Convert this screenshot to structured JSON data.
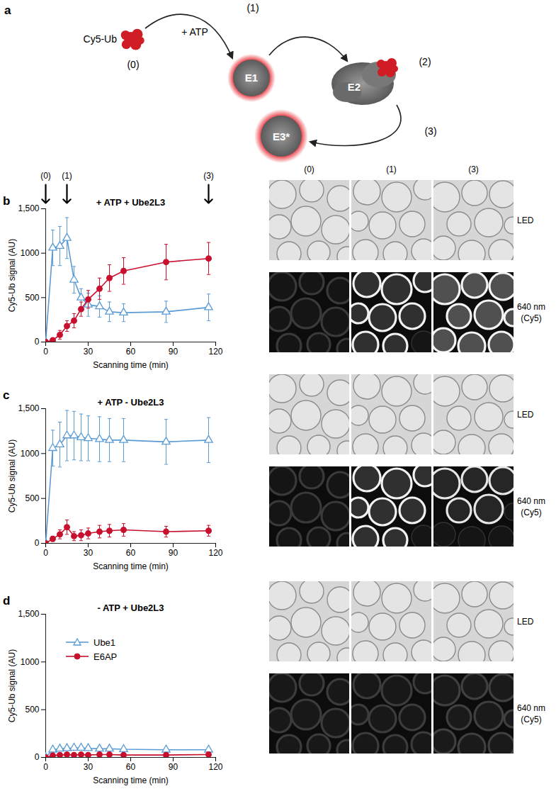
{
  "chart_data": [
    {
      "type": "line",
      "panel": "b",
      "title": "+ ATP + Ube2L3",
      "x_label": "Scanning time (min)",
      "y_label": "Cy5-Ub signal (AU)",
      "x": [
        0,
        5,
        10,
        15,
        20,
        25,
        30,
        38,
        45,
        55,
        85,
        115
      ],
      "xlim": [
        0,
        120
      ],
      "xticks": [
        0,
        30,
        60,
        90,
        120
      ],
      "ylim": [
        0,
        1500
      ],
      "yticks": [
        0,
        500,
        1000,
        {
          "value": 1500,
          "label": "1,500"
        }
      ],
      "markers": [
        {
          "x": 0,
          "label": "(0)"
        },
        {
          "x": 15,
          "label": "(1)"
        },
        {
          "x": 115,
          "label": "(3)"
        }
      ],
      "series": [
        {
          "name": "Ube1",
          "color": "#5b9bd5",
          "marker": "triangle-open",
          "values": [
            0,
            1060,
            1080,
            1170,
            700,
            500,
            420,
            400,
            340,
            330,
            340,
            390
          ],
          "errors": [
            0,
            200,
            220,
            230,
            150,
            100,
            130,
            120,
            110,
            100,
            120,
            150
          ]
        },
        {
          "name": "E6AP",
          "color": "#c8102e",
          "marker": "circle",
          "values": [
            0,
            20,
            80,
            180,
            240,
            370,
            480,
            600,
            720,
            800,
            900,
            940
          ],
          "errors": [
            0,
            20,
            50,
            60,
            80,
            80,
            100,
            120,
            150,
            150,
            200,
            180
          ]
        }
      ]
    },
    {
      "type": "line",
      "panel": "c",
      "title": "+ ATP - Ube2L3",
      "x_label": "Scanning time (min)",
      "y_label": "Cy5-Ub signal (AU)",
      "x": [
        0,
        5,
        10,
        15,
        20,
        25,
        30,
        38,
        45,
        55,
        85,
        115
      ],
      "xlim": [
        0,
        120
      ],
      "xticks": [
        0,
        30,
        60,
        90,
        120
      ],
      "ylim": [
        0,
        1500
      ],
      "yticks": [
        0,
        500,
        1000,
        {
          "value": 1500,
          "label": "1,500"
        }
      ],
      "series": [
        {
          "name": "Ube1",
          "color": "#5b9bd5",
          "marker": "triangle-open",
          "values": [
            0,
            1060,
            1100,
            1200,
            1200,
            1180,
            1170,
            1160,
            1150,
            1150,
            1130,
            1150
          ],
          "errors": [
            0,
            200,
            250,
            280,
            270,
            260,
            250,
            250,
            240,
            240,
            250,
            250
          ]
        },
        {
          "name": "E6AP",
          "color": "#c8102e",
          "marker": "circle",
          "values": [
            0,
            50,
            100,
            180,
            80,
            90,
            110,
            130,
            140,
            150,
            130,
            140
          ],
          "errors": [
            0,
            30,
            50,
            80,
            50,
            60,
            60,
            70,
            70,
            70,
            60,
            60
          ]
        }
      ]
    },
    {
      "type": "line",
      "panel": "d",
      "title": "- ATP + Ube2L3",
      "x_label": "Scanning time (min)",
      "y_label": "Cy5-Ub signal (AU)",
      "x": [
        0,
        5,
        10,
        15,
        20,
        25,
        30,
        38,
        45,
        55,
        85,
        115
      ],
      "xlim": [
        0,
        120
      ],
      "xticks": [
        0,
        30,
        60,
        90,
        120
      ],
      "ylim": [
        0,
        1500
      ],
      "yticks": [
        0,
        500,
        1000,
        {
          "value": 1500,
          "label": "1,500"
        }
      ],
      "legend": "top-left",
      "series": [
        {
          "name": "Ube1",
          "color": "#5b9bd5",
          "marker": "triangle-open",
          "values": [
            0,
            80,
            90,
            95,
            100,
            100,
            95,
            90,
            90,
            85,
            80,
            80
          ],
          "errors": [
            0,
            20,
            20,
            20,
            20,
            20,
            20,
            20,
            20,
            20,
            20,
            20
          ]
        },
        {
          "name": "E6AP",
          "color": "#c8102e",
          "marker": "circle",
          "values": [
            0,
            20,
            25,
            30,
            25,
            30,
            25,
            30,
            30,
            25,
            25,
            30
          ],
          "errors": [
            0,
            10,
            10,
            10,
            10,
            10,
            10,
            10,
            10,
            10,
            10,
            10
          ]
        }
      ]
    }
  ],
  "diagram": {
    "panel": "a",
    "substrate": "Cy5-Ub",
    "cofactor": "+ ATP",
    "steps": [
      "(0)",
      "(1)",
      "(2)",
      "(3)"
    ],
    "enzymes": [
      "E1",
      "E2",
      "E3*"
    ]
  },
  "images": [
    {
      "panel": "b",
      "columns": [
        "(0)",
        "(1)",
        "(3)"
      ],
      "rows": [
        [
          "LED"
        ],
        [
          "640 nm",
          "(Cy5)"
        ]
      ]
    },
    {
      "panel": "c",
      "rows": [
        [
          "LED"
        ],
        [
          "640 nm",
          "(Cy5)"
        ]
      ]
    },
    {
      "panel": "d",
      "rows": [
        [
          "LED"
        ],
        [
          "640 nm",
          "(Cy5)"
        ]
      ]
    }
  ]
}
